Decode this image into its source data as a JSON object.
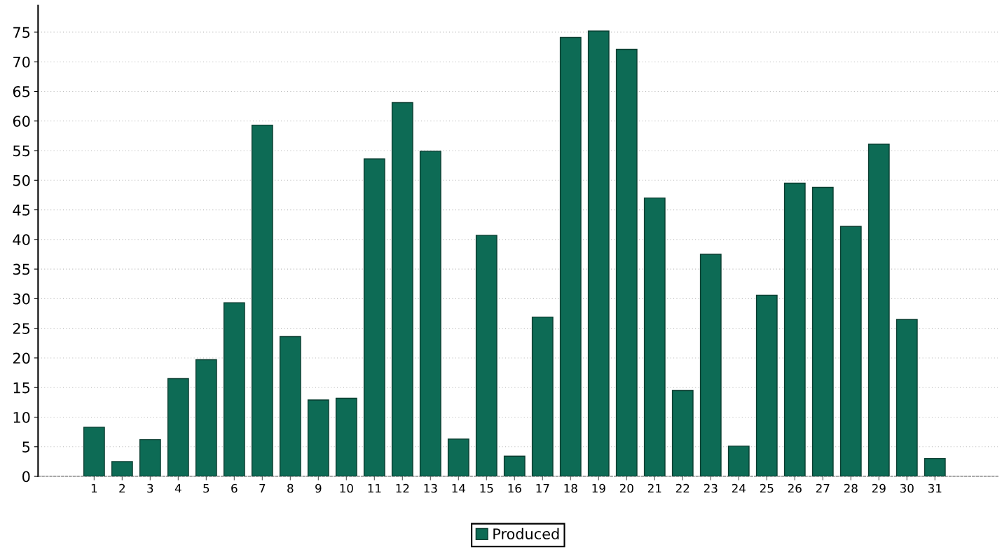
{
  "chart_data": {
    "type": "bar",
    "categories": [
      "1",
      "2",
      "3",
      "4",
      "5",
      "6",
      "7",
      "8",
      "9",
      "10",
      "11",
      "12",
      "13",
      "14",
      "15",
      "16",
      "17",
      "18",
      "19",
      "20",
      "21",
      "22",
      "23",
      "24",
      "25",
      "26",
      "27",
      "28",
      "29",
      "30",
      "31"
    ],
    "series": [
      {
        "name": "Produced",
        "color": "#0d6b55",
        "values": [
          8.3,
          2.5,
          6.2,
          16.5,
          19.7,
          29.3,
          59.3,
          23.6,
          12.9,
          13.2,
          53.6,
          63.1,
          54.9,
          6.3,
          40.7,
          3.4,
          26.9,
          74.1,
          75.2,
          72.1,
          47.0,
          14.5,
          37.5,
          5.1,
          30.6,
          49.5,
          48.8,
          42.2,
          56.1,
          26.5,
          3.0
        ]
      }
    ],
    "ylim": [
      0,
      79.5
    ],
    "yticks": [
      0,
      5,
      10,
      15,
      20,
      25,
      30,
      35,
      40,
      45,
      50,
      55,
      60,
      65,
      70,
      75
    ],
    "grid": "y",
    "legend": "bottom"
  }
}
